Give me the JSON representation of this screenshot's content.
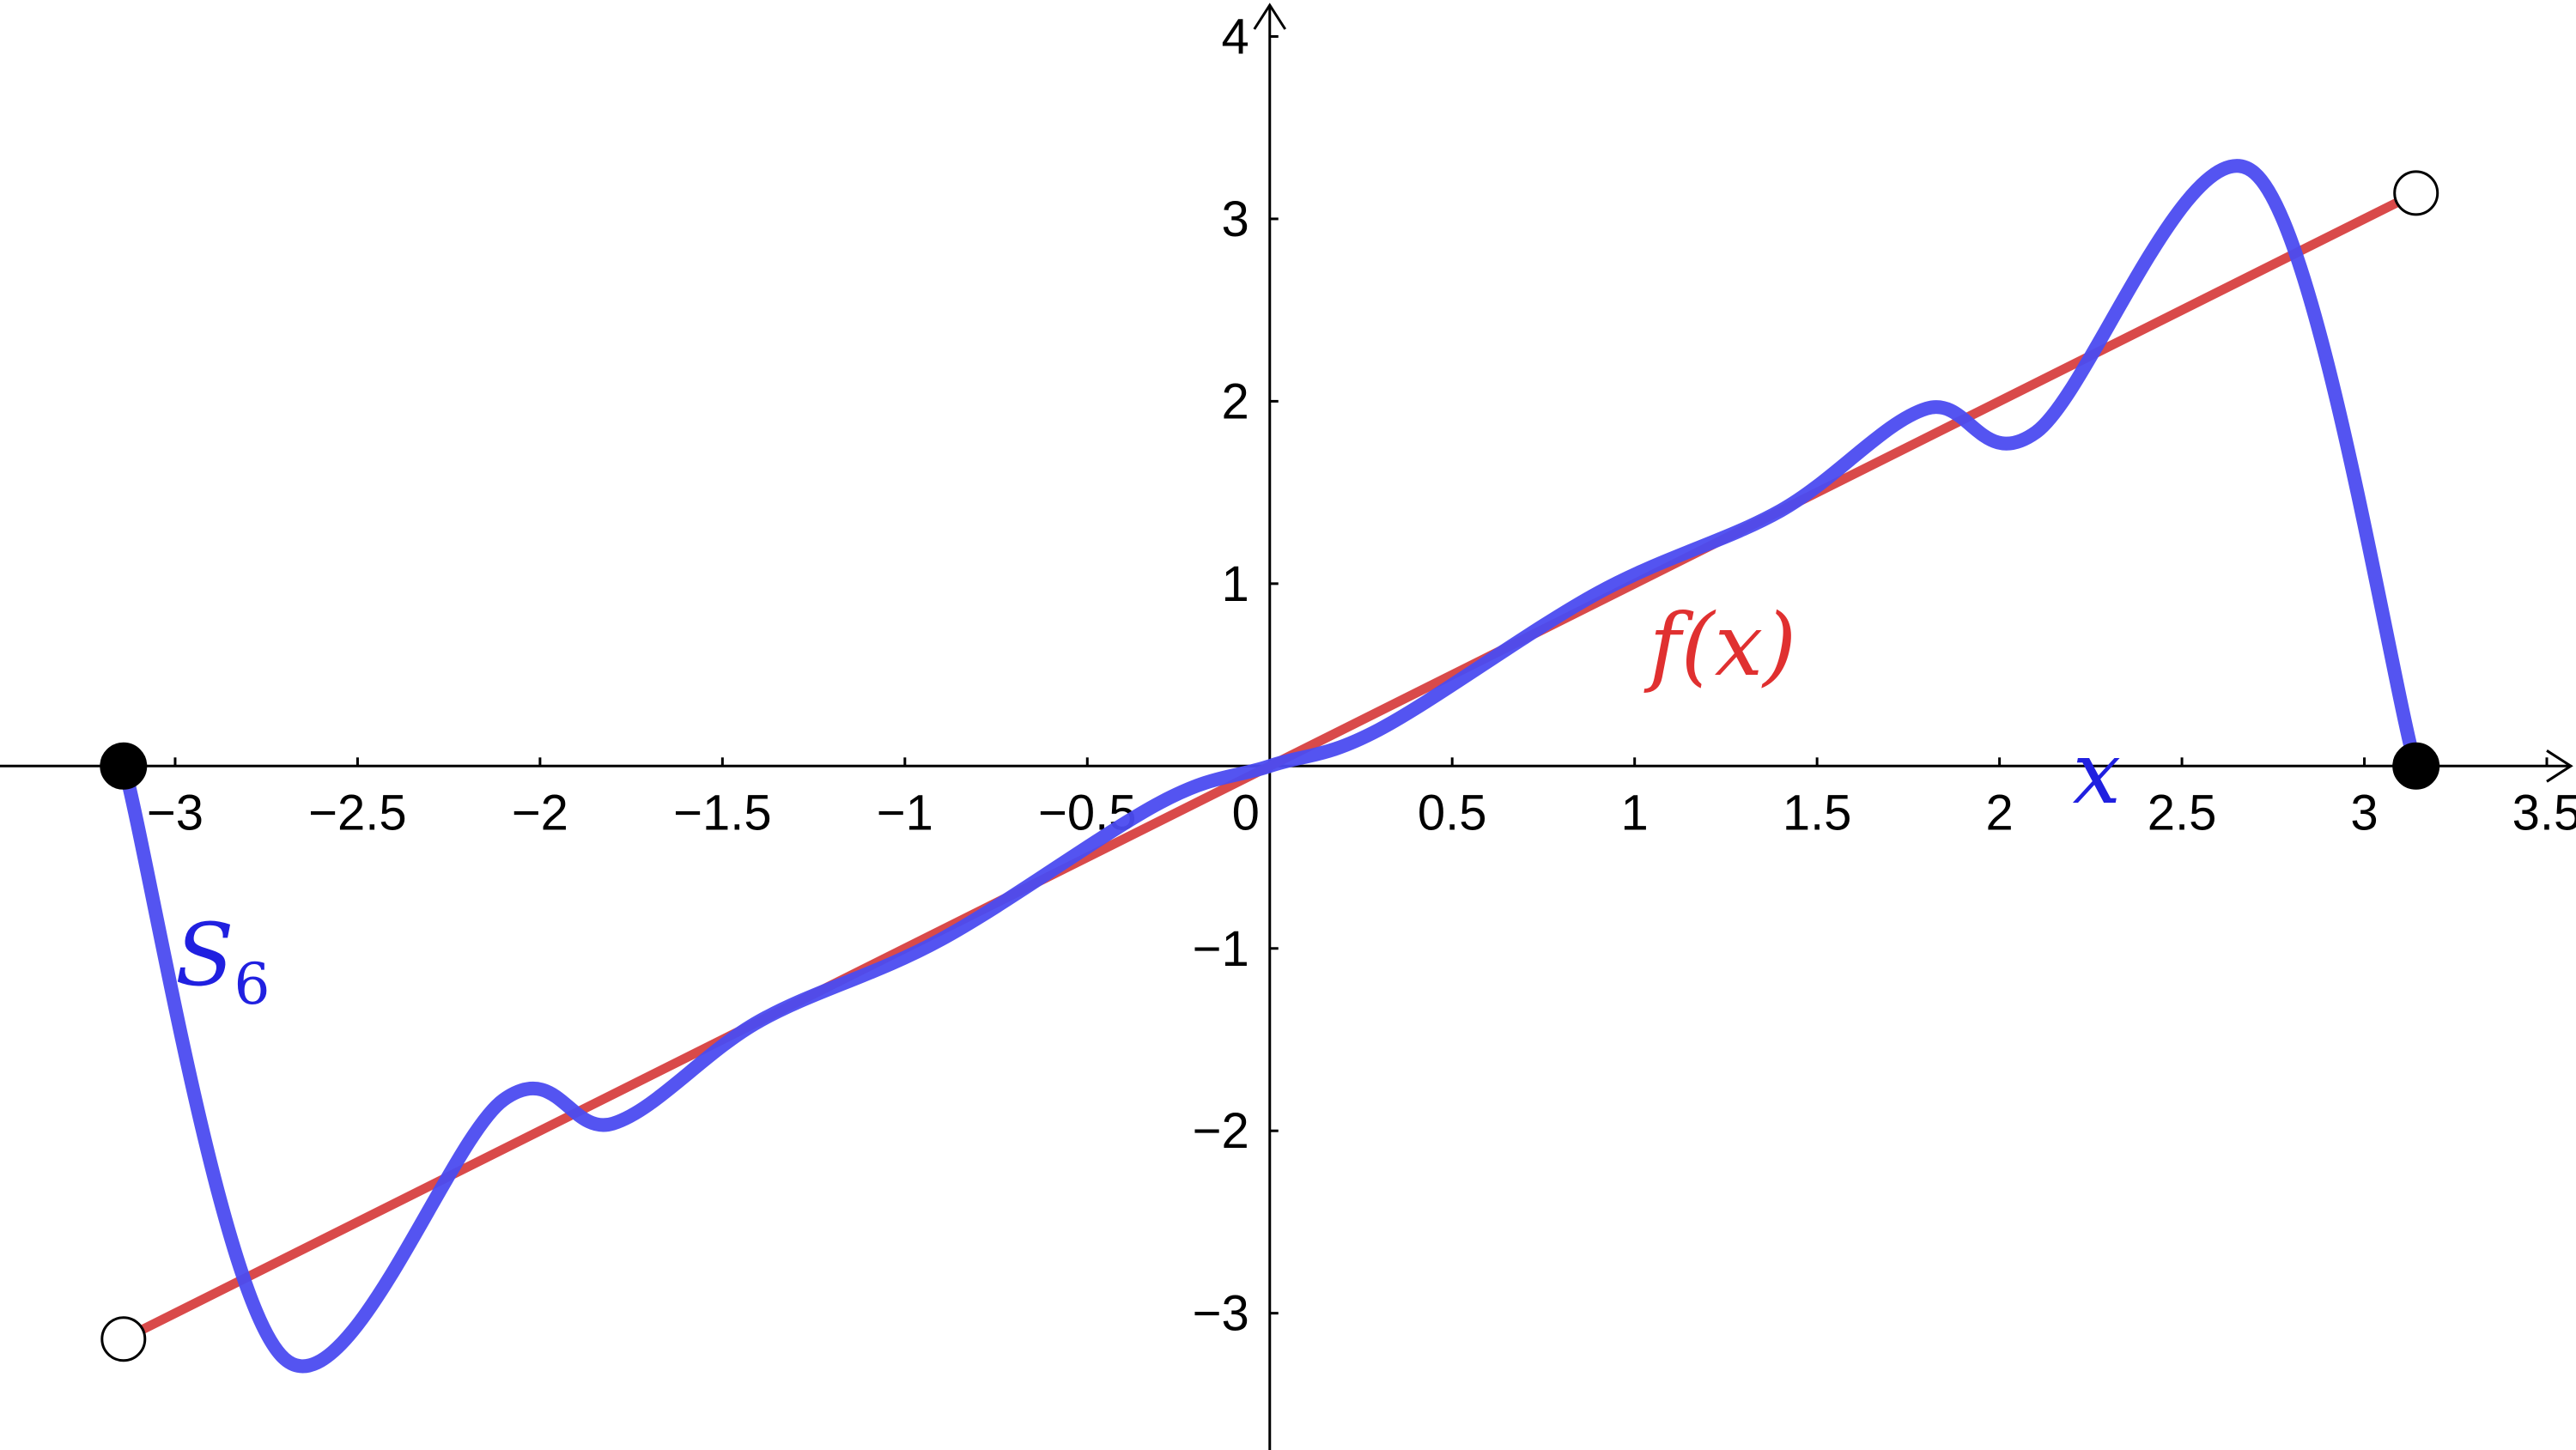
{
  "chart_data": {
    "type": "line",
    "title": "",
    "xlabel": "x",
    "ylabel": "",
    "xlim": [
      -3.48,
      3.58
    ],
    "ylim": [
      -3.75,
      4.2
    ],
    "grid": false,
    "x_ticks": [
      {
        "value": -3,
        "label": "−3"
      },
      {
        "value": -2.5,
        "label": "−2.5"
      },
      {
        "value": -2,
        "label": "−2"
      },
      {
        "value": -1.5,
        "label": "−1.5"
      },
      {
        "value": -1,
        "label": "−1"
      },
      {
        "value": -0.5,
        "label": "−0.5"
      },
      {
        "value": 0,
        "label": "0"
      },
      {
        "value": 0.5,
        "label": "0.5"
      },
      {
        "value": 1,
        "label": "1"
      },
      {
        "value": 1.5,
        "label": "1.5"
      },
      {
        "value": 2,
        "label": "2"
      },
      {
        "value": 2.5,
        "label": "2.5"
      },
      {
        "value": 3,
        "label": "3"
      },
      {
        "value": 3.5,
        "label": "3.5"
      }
    ],
    "y_ticks": [
      {
        "value": -3,
        "label": "−3"
      },
      {
        "value": -2,
        "label": "−2"
      },
      {
        "value": -1,
        "label": "−1"
      },
      {
        "value": 1,
        "label": "1"
      },
      {
        "value": 2,
        "label": "2"
      },
      {
        "value": 3,
        "label": "3"
      },
      {
        "value": 4,
        "label": "4"
      }
    ],
    "series": [
      {
        "name": "f(x)",
        "color": "#d94a4a",
        "domain": [
          -3.14159,
          3.14159
        ],
        "x": [
          -3.14159,
          3.14159
        ],
        "y": [
          -3.14159,
          3.14159
        ]
      },
      {
        "name": "S",
        "subscript": "6",
        "color": "#4b4bf0",
        "domain": [
          -3.14159,
          3.14159
        ],
        "x": [
          -3.14,
          -2.7,
          -2.1,
          -1.8,
          -1.4,
          -0.9,
          -0.3,
          0,
          0.3,
          0.9,
          1.4,
          1.8,
          2.1,
          2.7,
          3.14
        ],
        "y": [
          0,
          -3.25,
          -1.83,
          -1.96,
          -1.4,
          -0.95,
          -0.2,
          0,
          0.2,
          0.95,
          1.4,
          1.96,
          1.83,
          3.25,
          0
        ]
      }
    ],
    "endpoints": [
      {
        "x": -3.14159,
        "y": 0,
        "filled": true
      },
      {
        "x": 3.14159,
        "y": 0,
        "filled": true
      },
      {
        "x": -3.14159,
        "y": -3.14159,
        "filled": false
      },
      {
        "x": 3.14159,
        "y": 3.14159,
        "filled": false
      }
    ],
    "annotations": [
      {
        "text": "f(x)",
        "color": "#e03030",
        "x": 1.04,
        "y": 0.5
      },
      {
        "text": "x",
        "color": "#2020e0",
        "x": 2.2,
        "y": -0.2
      },
      {
        "text": "S",
        "subscript": "6",
        "color": "#2020e0",
        "x": -3.0,
        "y": -1.2
      }
    ]
  }
}
